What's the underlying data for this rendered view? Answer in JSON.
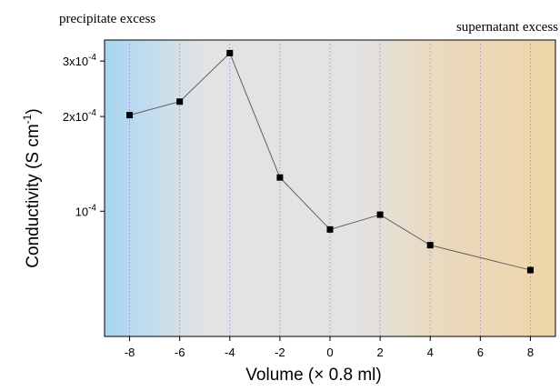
{
  "chart_data": {
    "type": "line",
    "annotations": [
      "precipitate excess",
      "supernatant excess"
    ],
    "xlabel": "Volume (× 0.8 ml)",
    "ylabel_prefix": "Conductivity (S cm",
    "ylabel_exp": "-1",
    "ylabel_suffix": ")",
    "x_scale": "linear",
    "y_scale": "log",
    "xlim": [
      -9,
      9
    ],
    "ylim": [
      4e-05,
      0.00035
    ],
    "x_ticks": [
      -8,
      -6,
      -4,
      -2,
      0,
      2,
      4,
      6,
      8
    ],
    "x_tick_labels": [
      "-8",
      "-6",
      "-4",
      "-2",
      "0",
      "2",
      "4",
      "6",
      "8"
    ],
    "y_ticks": [
      {
        "value": 0.0001,
        "mantissa": "",
        "base": "10",
        "exp": "-4"
      },
      {
        "value": 0.0002,
        "mantissa": "2x",
        "base": "10",
        "exp": "-4"
      },
      {
        "value": 0.0003,
        "mantissa": "3x",
        "base": "10",
        "exp": "-4"
      }
    ],
    "grid": "vertical dotted",
    "background_gradient": [
      "#a8d4ee",
      "#e3e3e3",
      "#e3e3e3",
      "#efd6a8"
    ],
    "line_color": "#555555",
    "marker_color": "#000000",
    "x": [
      -8,
      -6,
      -4,
      -2,
      0,
      2,
      4,
      6,
      8
    ],
    "y": [
      0.000202,
      0.000223,
      0.000318,
      0.000128,
      8.75e-05,
      9.75e-05,
      7.8e-05,
      null,
      6.5e-05
    ]
  }
}
